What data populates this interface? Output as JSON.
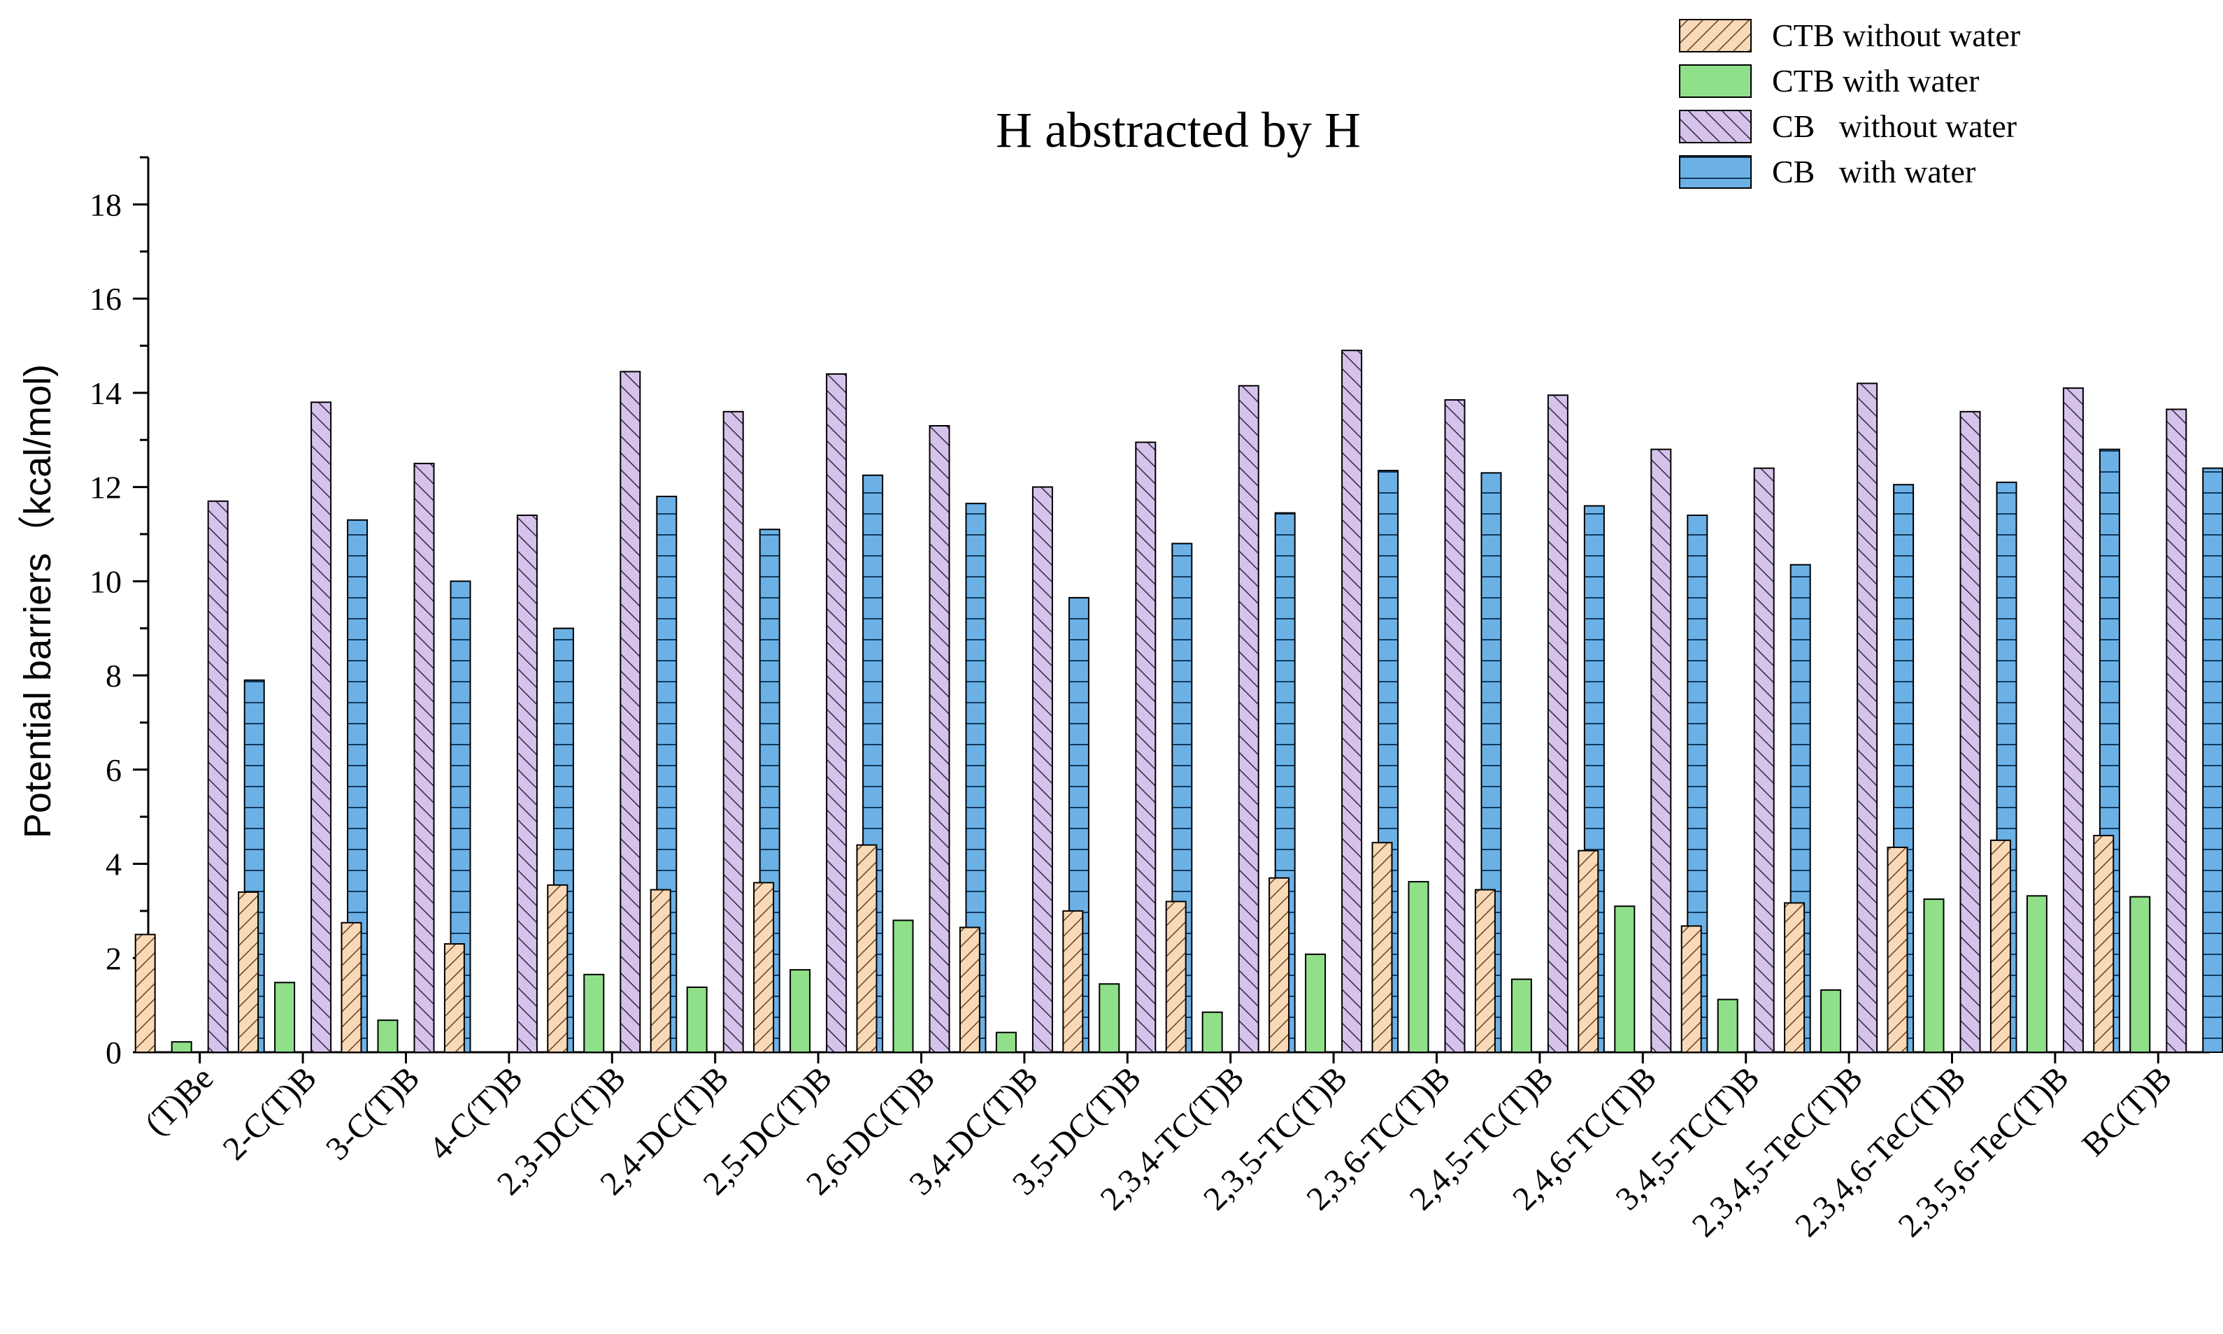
{
  "chart_data": {
    "type": "bar",
    "title": "H abstracted by H",
    "xlabel": "",
    "ylabel": "Potential barriers（kcal/mol)",
    "ylim": [
      0,
      19
    ],
    "yticks": [
      0,
      2,
      4,
      6,
      8,
      10,
      12,
      14,
      16,
      18
    ],
    "categories": [
      "(T)Be",
      "2-C(T)B",
      "3-C(T)B",
      "4-C(T)B",
      "2,3-DC(T)B",
      "2,4-DC(T)B",
      "2,5-DC(T)B",
      "2,6-DC(T)B",
      "3,4-DC(T)B",
      "3,5-DC(T)B",
      "2,3,4-TC(T)B",
      "2,3,5-TC(T)B",
      "2,3,6-TC(T)B",
      "2,4,5-TC(T)B",
      "2,4,6-TC(T)B",
      "3,4,5-TC(T)B",
      "2,3,4,5-TeC(T)B",
      "2,3,4,6-TeC(T)B",
      "2,3,5,6-TeC(T)B",
      "BC(T)B"
    ],
    "series": [
      {
        "name": "CTB without water",
        "color": "#f9d9b8",
        "pattern": "hatch-ctb",
        "values": [
          2.5,
          3.4,
          2.75,
          2.3,
          3.55,
          3.45,
          3.6,
          4.4,
          2.65,
          3.0,
          3.2,
          3.7,
          4.45,
          3.45,
          4.28,
          2.68,
          3.17,
          4.35,
          4.5,
          4.6
        ]
      },
      {
        "name": "CTB with water",
        "color": "#90e08a",
        "pattern": "none",
        "values": [
          0.22,
          1.48,
          0.68,
          0.0,
          1.65,
          1.38,
          1.75,
          2.8,
          0.42,
          1.45,
          0.85,
          2.08,
          3.62,
          1.55,
          3.1,
          1.12,
          1.32,
          3.25,
          3.32,
          3.3
        ]
      },
      {
        "name": "CB   without water",
        "color": "#d6c3ec",
        "pattern": "hatch-cb",
        "values": [
          11.7,
          13.8,
          12.5,
          11.4,
          14.45,
          13.6,
          14.4,
          13.3,
          12.0,
          12.95,
          14.15,
          14.9,
          13.85,
          13.95,
          12.8,
          12.4,
          14.2,
          13.6,
          14.1,
          13.65
        ]
      },
      {
        "name": "CB   with water",
        "color": "#6cb1e6",
        "pattern": "hatch-cbw",
        "values": [
          7.9,
          11.3,
          10.0,
          9.0,
          11.8,
          11.1,
          12.25,
          11.65,
          9.65,
          10.8,
          11.45,
          12.35,
          12.3,
          11.6,
          11.4,
          10.35,
          12.05,
          12.1,
          12.8,
          12.4
        ]
      }
    ],
    "legend_position": "top-right"
  }
}
